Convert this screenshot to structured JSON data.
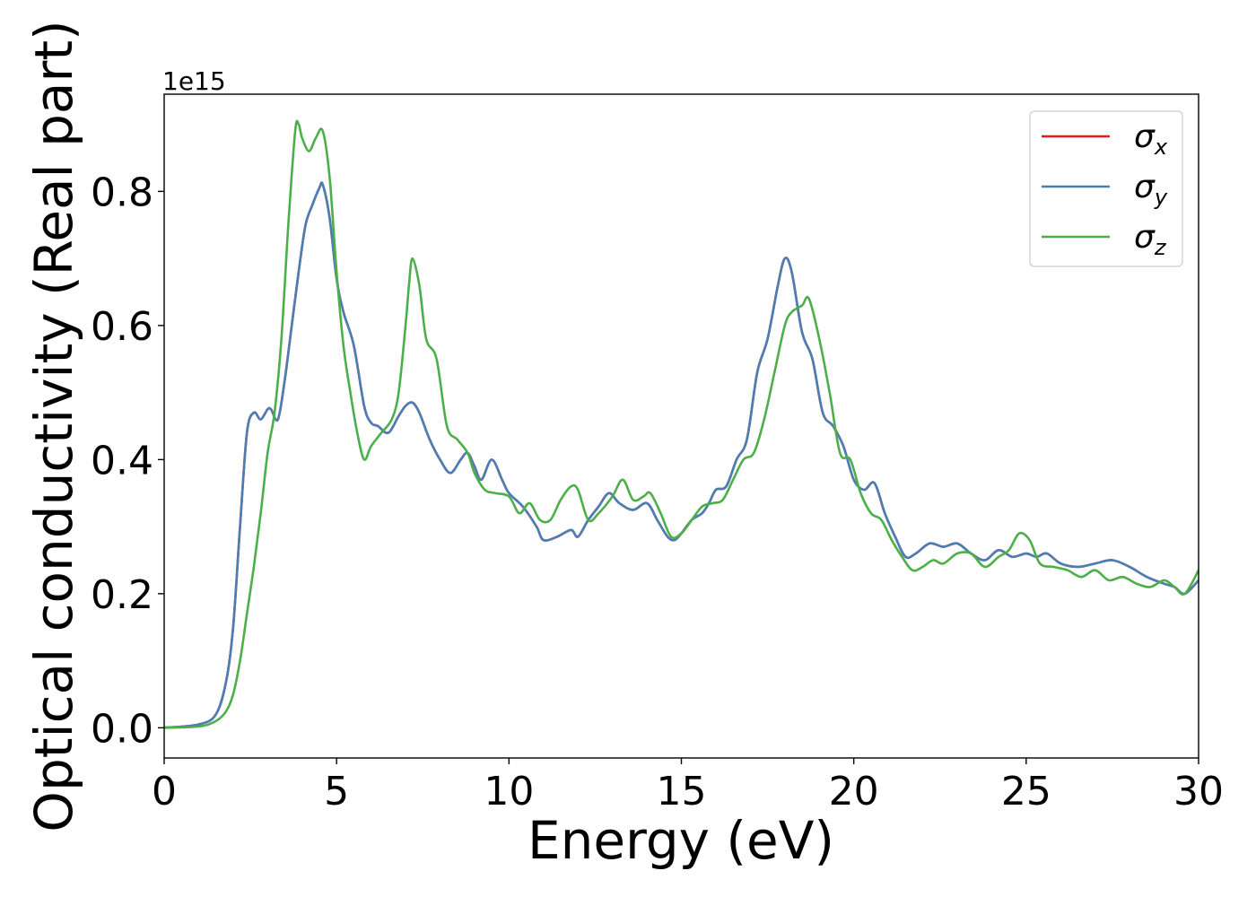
{
  "chart_data": {
    "type": "line",
    "title": "",
    "xlabel": "Energy (eV)",
    "ylabel": "Optical conductivity (Real part)",
    "y_offset_text": "1e15",
    "xlim": [
      0,
      30
    ],
    "ylim": [
      -0.045,
      0.945
    ],
    "x_ticks": [
      0,
      5,
      10,
      15,
      20,
      25,
      30
    ],
    "x_tick_labels": [
      "0",
      "5",
      "10",
      "15",
      "20",
      "25",
      "30"
    ],
    "y_ticks": [
      0.0,
      0.2,
      0.4,
      0.6,
      0.8
    ],
    "y_tick_labels": [
      "0.0",
      "0.2",
      "0.4",
      "0.6",
      "0.8"
    ],
    "grid": false,
    "legend_position": "top-right",
    "series": [
      {
        "name": "σx",
        "legend_symbol": "σ",
        "legend_subscript": "x",
        "color": "#e41a1c",
        "x": [
          0,
          1,
          1.5,
          1.8,
          2.0,
          2.2,
          2.4,
          2.6,
          2.8,
          3.0,
          3.1,
          3.3,
          3.5,
          3.7,
          3.9,
          4.1,
          4.3,
          4.5,
          4.6,
          4.8,
          5.0,
          5.2,
          5.5,
          5.8,
          6.0,
          6.2,
          6.5,
          6.8,
          7.0,
          7.2,
          7.4,
          7.7,
          8.0,
          8.3,
          8.6,
          8.8,
          9.0,
          9.2,
          9.5,
          9.8,
          10.0,
          10.4,
          10.8,
          11.0,
          11.4,
          11.8,
          12.0,
          12.3,
          12.6,
          12.9,
          13.2,
          13.6,
          14.0,
          14.3,
          14.6,
          14.8,
          15.0,
          15.3,
          15.6,
          15.8,
          16.0,
          16.3,
          16.6,
          16.9,
          17.2,
          17.5,
          17.8,
          18.0,
          18.2,
          18.5,
          18.8,
          19.1,
          19.4,
          19.7,
          20.0,
          20.3,
          20.6,
          20.9,
          21.2,
          21.5,
          21.8,
          22.2,
          22.6,
          23.0,
          23.4,
          23.8,
          24.2,
          24.6,
          25.0,
          25.3,
          25.6,
          26.0,
          26.5,
          27.0,
          27.5,
          28.0,
          28.5,
          29.0,
          29.3,
          29.6,
          30.0
        ],
        "y": [
          0.0,
          0.005,
          0.02,
          0.07,
          0.15,
          0.3,
          0.44,
          0.47,
          0.46,
          0.475,
          0.475,
          0.46,
          0.52,
          0.6,
          0.68,
          0.75,
          0.78,
          0.805,
          0.81,
          0.76,
          0.67,
          0.62,
          0.57,
          0.48,
          0.455,
          0.45,
          0.44,
          0.465,
          0.48,
          0.485,
          0.47,
          0.43,
          0.4,
          0.38,
          0.4,
          0.41,
          0.39,
          0.37,
          0.4,
          0.37,
          0.35,
          0.33,
          0.3,
          0.28,
          0.285,
          0.295,
          0.285,
          0.31,
          0.33,
          0.35,
          0.335,
          0.325,
          0.335,
          0.31,
          0.285,
          0.28,
          0.29,
          0.31,
          0.32,
          0.335,
          0.355,
          0.36,
          0.4,
          0.43,
          0.53,
          0.58,
          0.66,
          0.7,
          0.68,
          0.59,
          0.55,
          0.47,
          0.45,
          0.42,
          0.37,
          0.355,
          0.365,
          0.32,
          0.285,
          0.255,
          0.26,
          0.275,
          0.27,
          0.275,
          0.26,
          0.25,
          0.265,
          0.255,
          0.26,
          0.255,
          0.26,
          0.245,
          0.24,
          0.245,
          0.25,
          0.24,
          0.225,
          0.215,
          0.21,
          0.2,
          0.22
        ]
      },
      {
        "name": "σy",
        "legend_symbol": "σ",
        "legend_subscript": "y",
        "color": "#4a7fb5",
        "x": [
          0,
          1,
          1.5,
          1.8,
          2.0,
          2.2,
          2.4,
          2.6,
          2.8,
          3.0,
          3.1,
          3.3,
          3.5,
          3.7,
          3.9,
          4.1,
          4.3,
          4.5,
          4.6,
          4.8,
          5.0,
          5.2,
          5.5,
          5.8,
          6.0,
          6.2,
          6.5,
          6.8,
          7.0,
          7.2,
          7.4,
          7.7,
          8.0,
          8.3,
          8.6,
          8.8,
          9.0,
          9.2,
          9.5,
          9.8,
          10.0,
          10.4,
          10.8,
          11.0,
          11.4,
          11.8,
          12.0,
          12.3,
          12.6,
          12.9,
          13.2,
          13.6,
          14.0,
          14.3,
          14.6,
          14.8,
          15.0,
          15.3,
          15.6,
          15.8,
          16.0,
          16.3,
          16.6,
          16.9,
          17.2,
          17.5,
          17.8,
          18.0,
          18.2,
          18.5,
          18.8,
          19.1,
          19.4,
          19.7,
          20.0,
          20.3,
          20.6,
          20.9,
          21.2,
          21.5,
          21.8,
          22.2,
          22.6,
          23.0,
          23.4,
          23.8,
          24.2,
          24.6,
          25.0,
          25.3,
          25.6,
          26.0,
          26.5,
          27.0,
          27.5,
          28.0,
          28.5,
          29.0,
          29.3,
          29.6,
          30.0
        ],
        "y": [
          0.0,
          0.005,
          0.02,
          0.07,
          0.15,
          0.3,
          0.44,
          0.47,
          0.46,
          0.475,
          0.475,
          0.46,
          0.52,
          0.6,
          0.68,
          0.75,
          0.78,
          0.805,
          0.81,
          0.76,
          0.67,
          0.62,
          0.57,
          0.48,
          0.455,
          0.45,
          0.44,
          0.465,
          0.48,
          0.485,
          0.47,
          0.43,
          0.4,
          0.38,
          0.4,
          0.41,
          0.39,
          0.37,
          0.4,
          0.37,
          0.35,
          0.33,
          0.3,
          0.28,
          0.285,
          0.295,
          0.285,
          0.31,
          0.33,
          0.35,
          0.335,
          0.325,
          0.335,
          0.31,
          0.285,
          0.28,
          0.29,
          0.31,
          0.32,
          0.335,
          0.355,
          0.36,
          0.4,
          0.43,
          0.53,
          0.58,
          0.66,
          0.7,
          0.68,
          0.59,
          0.55,
          0.47,
          0.45,
          0.42,
          0.37,
          0.355,
          0.365,
          0.32,
          0.285,
          0.255,
          0.26,
          0.275,
          0.27,
          0.275,
          0.26,
          0.25,
          0.265,
          0.255,
          0.26,
          0.255,
          0.26,
          0.245,
          0.24,
          0.245,
          0.25,
          0.24,
          0.225,
          0.215,
          0.21,
          0.2,
          0.22
        ]
      },
      {
        "name": "σz",
        "legend_symbol": "σ",
        "legend_subscript": "z",
        "color": "#4daf4a",
        "x": [
          0,
          1,
          1.5,
          1.8,
          2.0,
          2.2,
          2.4,
          2.6,
          2.8,
          3.0,
          3.2,
          3.4,
          3.6,
          3.8,
          3.9,
          4.0,
          4.2,
          4.4,
          4.6,
          4.8,
          5.0,
          5.2,
          5.4,
          5.6,
          5.8,
          6.0,
          6.3,
          6.6,
          6.8,
          7.0,
          7.1,
          7.2,
          7.4,
          7.6,
          7.9,
          8.2,
          8.5,
          8.8,
          9.0,
          9.3,
          9.6,
          10.0,
          10.3,
          10.6,
          10.9,
          11.2,
          11.5,
          11.8,
          12.0,
          12.3,
          12.6,
          13.0,
          13.3,
          13.6,
          13.9,
          14.1,
          14.4,
          14.7,
          15.0,
          15.3,
          15.6,
          15.9,
          16.2,
          16.5,
          16.8,
          17.1,
          17.4,
          17.7,
          18.0,
          18.2,
          18.5,
          18.7,
          19.0,
          19.3,
          19.6,
          19.9,
          20.2,
          20.5,
          20.8,
          21.1,
          21.4,
          21.7,
          22.0,
          22.3,
          22.6,
          23.0,
          23.4,
          23.8,
          24.2,
          24.5,
          24.8,
          25.1,
          25.4,
          25.8,
          26.2,
          26.6,
          27.0,
          27.4,
          27.8,
          28.2,
          28.6,
          29.0,
          29.3,
          29.6,
          30.0
        ],
        "y": [
          0.0,
          0.002,
          0.01,
          0.025,
          0.05,
          0.1,
          0.17,
          0.24,
          0.32,
          0.41,
          0.47,
          0.58,
          0.75,
          0.89,
          0.9,
          0.88,
          0.86,
          0.88,
          0.89,
          0.82,
          0.68,
          0.57,
          0.5,
          0.44,
          0.4,
          0.42,
          0.44,
          0.46,
          0.5,
          0.6,
          0.66,
          0.7,
          0.66,
          0.58,
          0.55,
          0.45,
          0.43,
          0.41,
          0.38,
          0.355,
          0.35,
          0.345,
          0.32,
          0.335,
          0.31,
          0.31,
          0.34,
          0.36,
          0.355,
          0.31,
          0.32,
          0.345,
          0.37,
          0.34,
          0.345,
          0.35,
          0.32,
          0.285,
          0.29,
          0.31,
          0.33,
          0.335,
          0.34,
          0.37,
          0.4,
          0.41,
          0.46,
          0.53,
          0.6,
          0.62,
          0.63,
          0.64,
          0.58,
          0.5,
          0.41,
          0.4,
          0.35,
          0.32,
          0.31,
          0.28,
          0.255,
          0.235,
          0.24,
          0.25,
          0.245,
          0.26,
          0.26,
          0.24,
          0.255,
          0.265,
          0.29,
          0.28,
          0.245,
          0.24,
          0.235,
          0.225,
          0.235,
          0.22,
          0.225,
          0.215,
          0.21,
          0.22,
          0.21,
          0.2,
          0.235
        ]
      }
    ]
  }
}
